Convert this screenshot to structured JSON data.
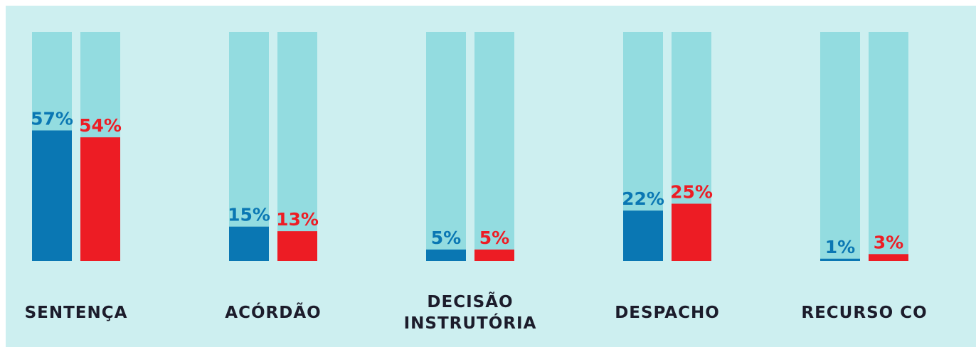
{
  "chart_data": {
    "type": "bar",
    "categories": [
      "SENTENÇA",
      "ACÓRDÃO",
      "DECISÃO INSTRUTÓRIA",
      "DESPACHO",
      "RECURSO CO"
    ],
    "series": [
      {
        "color": "#0a77b3",
        "values": [
          57,
          15,
          5,
          22,
          1
        ],
        "value_labels": [
          "57%",
          "15%",
          "5%",
          "22%",
          "1%"
        ]
      },
      {
        "color": "#ed1c24",
        "values": [
          54,
          13,
          5,
          25,
          3
        ],
        "value_labels": [
          "54%",
          "13%",
          "5%",
          "25%",
          "3%"
        ]
      }
    ],
    "track_color": "#93dce0",
    "ylim": [
      0,
      100
    ]
  }
}
